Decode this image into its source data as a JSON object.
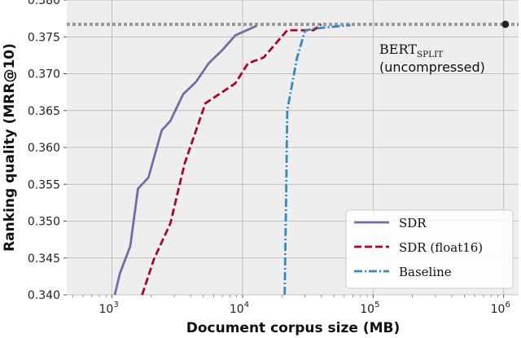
{
  "chart_data": {
    "type": "line",
    "title": "",
    "xlabel": "Document corpus size (MB)",
    "ylabel": "Ranking quality (MRR@10)",
    "xscale": "log",
    "xlim": [
      450,
      1300000
    ],
    "ylim": [
      0.34,
      0.38
    ],
    "grid": true,
    "legend_position": "bottom-right",
    "x_ticks": [
      {
        "value": 1000,
        "base": "10",
        "exp": "3"
      },
      {
        "value": 10000,
        "base": "10",
        "exp": "4"
      },
      {
        "value": 100000,
        "base": "10",
        "exp": "5"
      },
      {
        "value": 1000000,
        "base": "10",
        "exp": "6"
      }
    ],
    "y_ticks": [
      {
        "value": 0.34,
        "label": "0.340"
      },
      {
        "value": 0.345,
        "label": "0.345"
      },
      {
        "value": 0.35,
        "label": "0.350"
      },
      {
        "value": 0.355,
        "label": "0.355"
      },
      {
        "value": 0.36,
        "label": "0.360"
      },
      {
        "value": 0.365,
        "label": "0.365"
      },
      {
        "value": 0.37,
        "label": "0.370"
      },
      {
        "value": 0.375,
        "label": "0.375"
      },
      {
        "value": 0.38,
        "label": "0.380"
      }
    ],
    "series": [
      {
        "name": "SDR",
        "color": "#7a68a6",
        "style": "solid",
        "x": [
          1050,
          1150,
          1380,
          1580,
          1900,
          2400,
          2800,
          3500,
          4400,
          5500,
          7000,
          8800,
          12800
        ],
        "y": [
          0.34,
          0.3429,
          0.3466,
          0.3544,
          0.3559,
          0.3623,
          0.3636,
          0.3672,
          0.3689,
          0.3714,
          0.3732,
          0.3752,
          0.3765
        ]
      },
      {
        "name": "SDR (float16)",
        "color": "#a60628",
        "style": "dashed",
        "x": [
          1700,
          2100,
          2800,
          3600,
          5200,
          7000,
          8800,
          11000,
          14500,
          22000,
          35000,
          40000
        ],
        "y": [
          0.34,
          0.3449,
          0.3497,
          0.3578,
          0.366,
          0.3675,
          0.3687,
          0.3714,
          0.3722,
          0.3759,
          0.3759,
          0.3767
        ]
      },
      {
        "name": "Baseline",
        "color": "#348abd",
        "style": "dashdot",
        "x": [
          21000,
          21500,
          22000,
          26000,
          30000,
          34000,
          45000,
          67000
        ],
        "y": [
          0.34,
          0.352,
          0.365,
          0.372,
          0.3758,
          0.3761,
          0.3763,
          0.3766
        ]
      }
    ],
    "reference": {
      "label_main": "BERT",
      "label_sub": "SPLIT",
      "label_note": "(uncompressed)",
      "y": 0.3767,
      "x_marker": 1030000,
      "color": "#999999"
    }
  }
}
